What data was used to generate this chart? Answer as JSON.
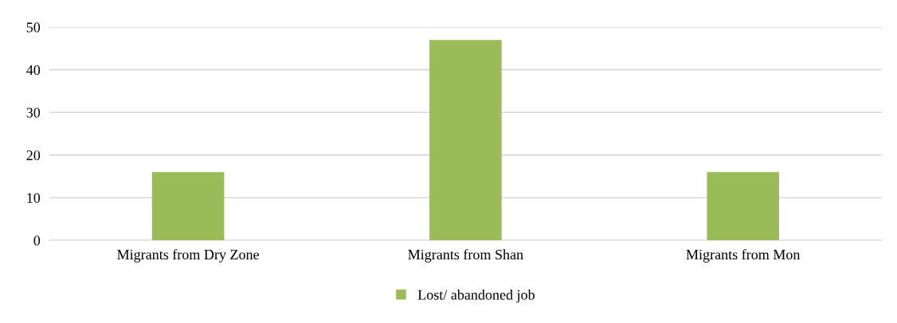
{
  "chart_data": {
    "type": "bar",
    "categories": [
      "Migrants from Dry Zone",
      "Migrants from Shan",
      "Migrants from Mon"
    ],
    "series": [
      {
        "name": "Lost/ abandoned job",
        "color": "#9bbb59",
        "values": [
          16,
          47,
          16
        ]
      }
    ],
    "ylim": [
      0,
      50
    ],
    "yticks": [
      0,
      10,
      20,
      30,
      40,
      50
    ],
    "grid": "y",
    "legend": "bottom"
  }
}
